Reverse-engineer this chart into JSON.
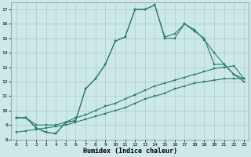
{
  "xlabel": "Humidex (Indice chaleur)",
  "background_color": "#cce8e8",
  "grid_color": "#aacccc",
  "line_color": "#2a7a6a",
  "xlim": [
    -0.5,
    23.5
  ],
  "ylim": [
    8,
    17.5
  ],
  "xticks": [
    0,
    1,
    2,
    3,
    4,
    5,
    6,
    7,
    8,
    9,
    10,
    11,
    12,
    13,
    14,
    15,
    16,
    17,
    18,
    19,
    20,
    21,
    22,
    23
  ],
  "yticks": [
    8,
    9,
    10,
    11,
    12,
    13,
    14,
    15,
    16,
    17
  ],
  "line1": {
    "x": [
      0,
      1,
      2,
      3,
      4,
      5,
      6,
      7,
      8,
      9,
      10,
      11,
      12,
      13,
      14,
      15,
      16,
      17,
      18,
      19,
      20,
      21,
      22,
      23
    ],
    "y": [
      9.5,
      9.5,
      8.8,
      8.5,
      8.4,
      9.2,
      9.3,
      11.5,
      12.2,
      13.2,
      14.8,
      15.1,
      17.0,
      17.0,
      17.3,
      15.0,
      15.0,
      16.0,
      15.5,
      15.0,
      13.2,
      13.2,
      12.5,
      12.2
    ]
  },
  "line2": {
    "x": [
      0,
      1,
      2,
      3,
      4,
      5,
      6,
      7,
      8,
      9,
      10,
      11,
      12,
      13,
      14,
      15,
      16,
      17,
      18,
      19,
      20,
      21,
      22,
      23
    ],
    "y": [
      9.5,
      9.5,
      8.8,
      8.5,
      8.4,
      9.2,
      9.3,
      11.5,
      12.2,
      13.2,
      14.8,
      15.1,
      17.0,
      17.0,
      17.3,
      15.1,
      15.3,
      16.0,
      15.6,
      14.9,
      14.0,
      13.2,
      12.5,
      12.0
    ]
  },
  "line3": {
    "x": [
      0,
      1,
      2,
      3,
      4,
      5,
      6,
      7,
      8,
      9,
      10,
      11,
      12,
      13,
      14,
      15,
      16,
      17,
      18,
      19,
      20,
      21,
      22,
      23
    ],
    "y": [
      8.5,
      8.6,
      8.7,
      8.8,
      8.9,
      9.0,
      9.2,
      9.4,
      9.6,
      9.8,
      10.0,
      10.2,
      10.5,
      10.8,
      11.0,
      11.2,
      11.5,
      11.7,
      11.9,
      12.0,
      12.1,
      12.2,
      12.2,
      12.2
    ]
  },
  "line4": {
    "x": [
      0,
      1,
      2,
      3,
      4,
      5,
      6,
      7,
      8,
      9,
      10,
      11,
      12,
      13,
      14,
      15,
      16,
      17,
      18,
      19,
      20,
      21,
      22,
      23
    ],
    "y": [
      9.5,
      9.5,
      9.0,
      9.0,
      9.0,
      9.2,
      9.5,
      9.7,
      10.0,
      10.3,
      10.5,
      10.8,
      11.1,
      11.4,
      11.7,
      11.9,
      12.1,
      12.3,
      12.5,
      12.7,
      12.9,
      13.0,
      13.1,
      12.2
    ]
  }
}
